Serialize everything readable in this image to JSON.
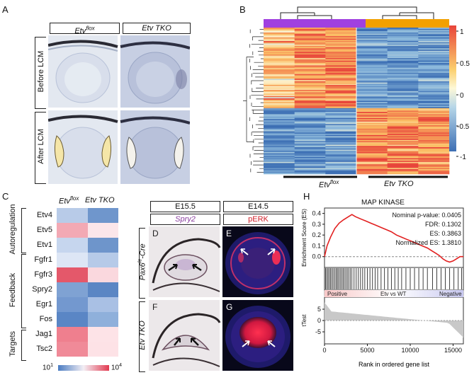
{
  "panels": {
    "A": {
      "label": "A",
      "col_headers": [
        "Etv",
        "Etv TKO"
      ],
      "col_superscripts": [
        "flox",
        ""
      ],
      "row_labels": [
        "Before LCM",
        "After LCM"
      ]
    },
    "B": {
      "label": "B",
      "group_labels": [
        "Etv",
        "Etv TKO"
      ],
      "group_superscripts": [
        "flox",
        ""
      ],
      "group_colors": [
        "#a040e0",
        "#f2a000"
      ],
      "colorbar_ticks": [
        "1",
        "0.5",
        "0",
        "-0.5",
        "-1"
      ]
    },
    "C": {
      "label": "C",
      "col_headers": [
        "Etv",
        "Etv TKO"
      ],
      "col_superscripts": [
        "flox",
        ""
      ],
      "groups": [
        "Autoregulation",
        "Feedback",
        "Targets"
      ],
      "genes": [
        "Etv4",
        "Etv5",
        "Etv1",
        "Fgfr1",
        "Fgfr3",
        "Spry2",
        "Egr1",
        "Fos",
        "Jag1",
        "Tsc2"
      ],
      "cell_colors": [
        [
          "#b8cbe8",
          "#6f96cc"
        ],
        [
          "#f3a9b4",
          "#fbe6ea"
        ],
        [
          "#c6d6ee",
          "#6e95cb"
        ],
        [
          "#dde6f5",
          "#b6cae8"
        ],
        [
          "#e4586a",
          "#fad8de"
        ],
        [
          "#7fa2d3",
          "#5b86c4"
        ],
        [
          "#7398cf",
          "#a9c0e4"
        ],
        [
          "#5a86c5",
          "#8fb0db"
        ],
        [
          "#ef7f8e",
          "#fde3e7"
        ],
        [
          "#f08a98",
          "#fde2e6"
        ]
      ],
      "scale_min": "10",
      "scale_min_sup": "1",
      "scale_max": "10",
      "scale_max_sup": "4"
    },
    "D": {
      "label": "D",
      "stage_labels": [
        "E15.5",
        "E14.5"
      ],
      "marker_labels": [
        "Spry2",
        "pERK"
      ],
      "marker_colors": [
        "#8a3ea0",
        "#d0202a"
      ],
      "row_labels": [
        "Pax6",
        "Etv TKO"
      ],
      "row_superscripts": [
        "le",
        ""
      ],
      "row_suffixes": [
        "-Cre",
        ""
      ],
      "sub_labels": [
        "D",
        "E",
        "F",
        "G"
      ]
    },
    "H": {
      "label": "H",
      "title": "MAP KINASE",
      "stats": [
        "Nominal p-value: 0.0405",
        "FDR: 0.1302",
        "ES: 0.3863",
        "Normalized ES: 1.3810"
      ],
      "ylabel_top": "Enrichment Score (ES)",
      "ylabel_bottom": "tTest",
      "yticks_top": [
        "0.4",
        "0.3",
        "0.2",
        "0.1",
        "0.0"
      ],
      "yticks_bottom": [
        "5",
        "0",
        "-5"
      ],
      "xticks": [
        "0",
        "5000",
        "10000",
        "15000"
      ],
      "xlabel": "Rank in ordered gene list",
      "bar_labels": [
        "Positive",
        "Etv vs WT",
        "Negative"
      ]
    }
  },
  "chart_data": {
    "type": "line",
    "title": "MAP KINASE",
    "xlabel": "Rank in ordered gene list",
    "ylabel": "Enrichment Score (ES)",
    "xlim": [
      0,
      16200
    ],
    "ylim": [
      -0.1,
      0.45
    ],
    "x": [
      0,
      300,
      700,
      1200,
      1700,
      2200,
      2800,
      3200,
      3600,
      4200,
      4800,
      5400,
      6000,
      6600,
      7200,
      7800,
      8400,
      9000,
      9600,
      10200,
      10800,
      11400,
      12000,
      12600,
      13000,
      13400,
      13800,
      14200,
      14600,
      15000,
      15400,
      15800,
      16200
    ],
    "series": [
      {
        "name": "Enrichment Score",
        "values": [
          0.0,
          0.1,
          0.18,
          0.26,
          0.31,
          0.34,
          0.37,
          0.39,
          0.37,
          0.35,
          0.33,
          0.31,
          0.29,
          0.27,
          0.25,
          0.23,
          0.2,
          0.18,
          0.16,
          0.14,
          0.12,
          0.1,
          0.08,
          0.05,
          0.03,
          0.01,
          -0.02,
          -0.04,
          -0.05,
          -0.04,
          -0.02,
          0.0,
          0.0
        ]
      }
    ],
    "hits": [
      120,
      260,
      410,
      560,
      700,
      860,
      1010,
      1200,
      1350,
      1500,
      1650,
      1820,
      1980,
      2150,
      2300,
      2480,
      2650,
      2820,
      3000,
      3200,
      3450,
      3700,
      3950,
      4200,
      4450,
      4700,
      5000,
      5300,
      5600,
      5900,
      6200,
      6600,
      7000,
      7400,
      7800,
      8200,
      8600,
      9000,
      9500,
      10000,
      10500,
      11000,
      11500,
      12000,
      12600,
      13100,
      13600,
      14100,
      14600,
      15100,
      15600,
      16000
    ]
  }
}
